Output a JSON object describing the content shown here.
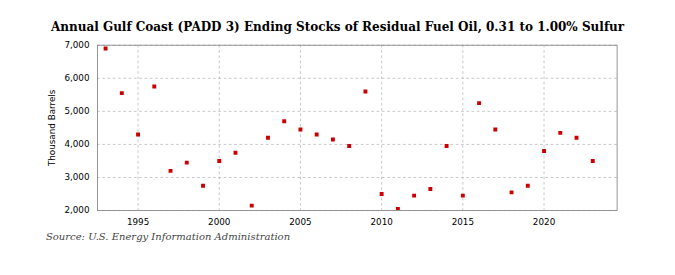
{
  "chart_data": {
    "type": "scatter",
    "title": "Annual Gulf Coast (PADD 3) Ending Stocks of Residual Fuel Oil, 0.31 to 1.00% Sulfur",
    "ylabel": "Thousand Barrels",
    "caption": "Source: U.S. Energy Information Administration",
    "x": [
      1993,
      1994,
      1995,
      1996,
      1997,
      1998,
      1999,
      2000,
      2001,
      2002,
      2003,
      2004,
      2005,
      2006,
      2007,
      2008,
      2009,
      2010,
      2011,
      2012,
      2013,
      2014,
      2015,
      2016,
      2017,
      2018,
      2019,
      2020,
      2021,
      2022,
      2023
    ],
    "values": [
      6900,
      5550,
      4300,
      5750,
      3200,
      3450,
      2750,
      3500,
      3750,
      2150,
      4200,
      4700,
      4450,
      4300,
      4150,
      3950,
      5600,
      2500,
      2050,
      2450,
      2650,
      3950,
      2450,
      5250,
      4450,
      2550,
      2750,
      3800,
      4350,
      4200,
      3500
    ],
    "color": "#cc0000",
    "marker": "square",
    "xlim": [
      1992.5,
      2024.5
    ],
    "xticks": [
      1995,
      2000,
      2005,
      2010,
      2015,
      2020
    ],
    "ylim": [
      2000,
      7000
    ],
    "yticks": [
      {
        "value": 2000,
        "label": "2,000"
      },
      {
        "value": 3000,
        "label": "3,000"
      },
      {
        "value": 4000,
        "label": "4,000"
      },
      {
        "value": 5000,
        "label": "5,000"
      },
      {
        "value": 6000,
        "label": "6,000"
      },
      {
        "value": 7000,
        "label": "7,000"
      }
    ],
    "grid": true
  }
}
